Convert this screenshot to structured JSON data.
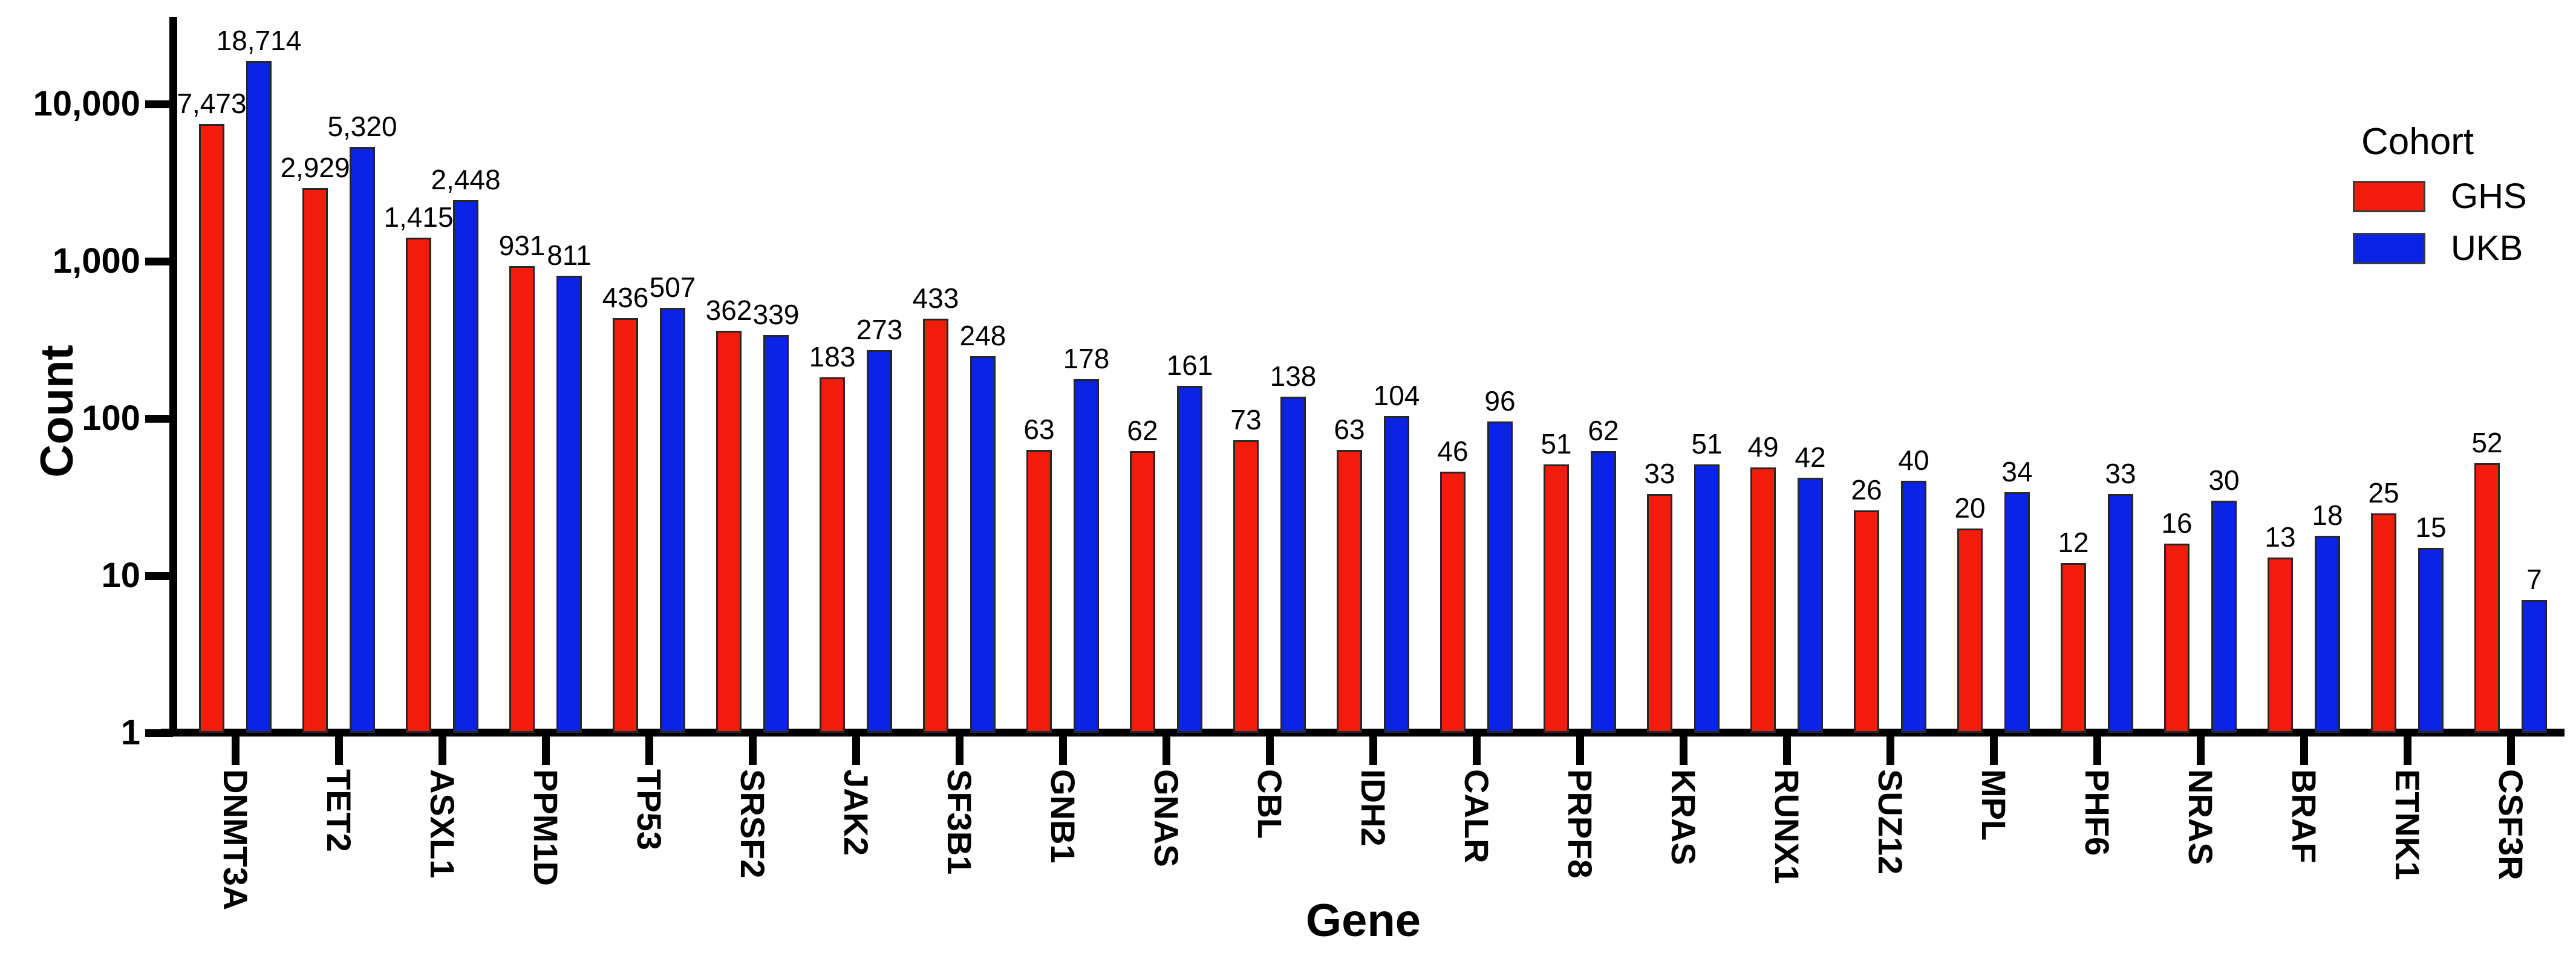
{
  "figure": {
    "y_axis_title": "Count",
    "x_axis_title": "Gene",
    "legend": {
      "title": "Cohort",
      "items": [
        {
          "label": "GHS",
          "color": "#f11c0c"
        },
        {
          "label": "UKB",
          "color": "#0b23e6"
        }
      ]
    },
    "colors": {
      "ghs_red": "#f11c0c",
      "ukb_blue": "#0b23e6",
      "axis_black": "#000000",
      "bar_outline": "#262626",
      "background": "#ffffff"
    }
  },
  "chart_data": {
    "type": "bar",
    "scale": "log10",
    "title": "",
    "xlabel": "Gene",
    "ylabel": "Count",
    "ylim": [
      1,
      35000
    ],
    "grid": false,
    "legend_position": "top-right-inside",
    "categories": [
      "DNMT3A",
      "TET2",
      "ASXL1",
      "PPM1D",
      "TP53",
      "SRSF2",
      "JAK2",
      "SF3B1",
      "GNB1",
      "GNAS",
      "CBL",
      "IDH2",
      "CALR",
      "PRPF8",
      "KRAS",
      "RUNX1",
      "SUZ12",
      "MPL",
      "PHF6",
      "NRAS",
      "BRAF",
      "ETNK1",
      "CSF3R"
    ],
    "series": [
      {
        "name": "GHS",
        "color": "#f11c0c",
        "values": [
          7473,
          2929,
          1415,
          931,
          436,
          362,
          183,
          433,
          63,
          62,
          73,
          63,
          46,
          51,
          33,
          49,
          26,
          20,
          12,
          16,
          13,
          25,
          52
        ],
        "labels": [
          "7,473",
          "2,929",
          "1,415",
          "931",
          "436",
          "362",
          "183",
          "433",
          "63",
          "62",
          "73",
          "63",
          "46",
          "51",
          "33",
          "49",
          "26",
          "20",
          "12",
          "16",
          "13",
          "25",
          "52"
        ]
      },
      {
        "name": "UKB",
        "color": "#0b23e6",
        "values": [
          18714,
          5320,
          2448,
          811,
          507,
          339,
          273,
          248,
          178,
          161,
          138,
          104,
          96,
          62,
          51,
          42,
          40,
          34,
          33,
          30,
          18,
          15,
          7
        ],
        "labels": [
          "18,714",
          "5,320",
          "2,448",
          "811",
          "507",
          "339",
          "273",
          "248",
          "178",
          "161",
          "138",
          "104",
          "96",
          "62",
          "51",
          "42",
          "40",
          "34",
          "33",
          "30",
          "18",
          "15",
          "7"
        ]
      }
    ],
    "y_ticks": {
      "values": [
        1,
        10,
        100,
        1000,
        10000
      ],
      "labels": [
        "1",
        "10",
        "100",
        "1,000",
        "10,000"
      ]
    }
  }
}
